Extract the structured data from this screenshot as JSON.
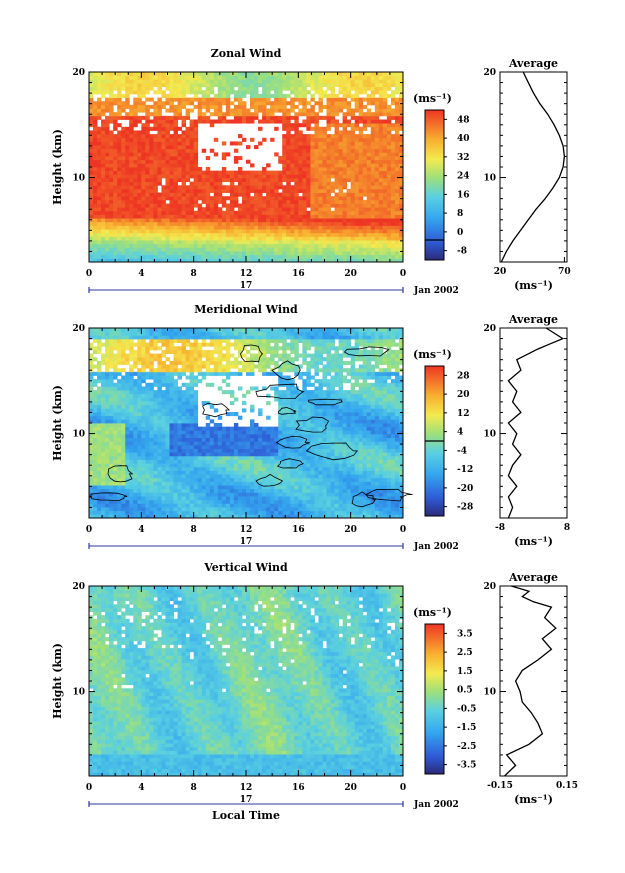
{
  "figure": {
    "time_axis_caption": "Local Time",
    "date_text": "Jan 2002",
    "day_label": "17"
  },
  "chart_data": [
    {
      "type": "heatmap",
      "title": "Zonal Wind",
      "ylabel": "Height (km)",
      "xticks": [
        "0",
        "4",
        "8",
        "12",
        "16",
        "20",
        "0"
      ],
      "yticks": [
        "10",
        "20"
      ],
      "ylim": [
        2,
        20
      ],
      "colorbar": {
        "unit": "(ms⁻¹)",
        "labels": [
          "48",
          "40",
          "32",
          "24",
          "16",
          "8",
          "0",
          "-8"
        ],
        "range": [
          -8,
          52
        ],
        "line_at": 0
      },
      "contours": false,
      "profile": {
        "title": "Average",
        "xlabel": "(ms⁻¹)",
        "xticks": [
          "20",
          "70"
        ],
        "xlim": [
          20,
          72
        ],
        "yticks": [
          "10",
          "20"
        ],
        "x": [
          21,
          25,
          30,
          36,
          42,
          48,
          55,
          61,
          66,
          69,
          70,
          69,
          66,
          62,
          57,
          51,
          46,
          42,
          38
        ],
        "y": [
          2,
          3,
          4,
          5,
          6,
          7,
          8,
          9,
          10,
          11,
          12,
          13,
          14,
          15,
          16,
          17,
          18,
          19,
          20
        ]
      }
    },
    {
      "type": "heatmap",
      "title": "Meridional Wind",
      "ylabel": "Height (km)",
      "xticks": [
        "0",
        "4",
        "8",
        "12",
        "16",
        "20",
        "0"
      ],
      "yticks": [
        "10",
        "20"
      ],
      "ylim": [
        2,
        20
      ],
      "colorbar": {
        "unit": "(ms⁻¹)",
        "labels": [
          "28",
          "20",
          "12",
          "4",
          "-4",
          "-12",
          "-20",
          "-28"
        ],
        "range": [
          -32,
          32
        ],
        "line_at": 0
      },
      "contours": true,
      "profile": {
        "title": "Average",
        "xlabel": "(ms⁻¹)",
        "xticks": [
          "-8",
          "8"
        ],
        "xlim": [
          -8,
          8
        ],
        "yticks": [
          "10",
          "20"
        ],
        "x": [
          -6,
          -5,
          -6,
          -4,
          -6,
          -5,
          -3,
          -5,
          -4,
          -6,
          -3,
          -5,
          -4,
          -6,
          -3,
          -4,
          1,
          4,
          7,
          3
        ],
        "y": [
          2,
          3,
          4,
          5,
          6,
          7,
          8,
          9,
          10,
          11,
          12,
          13,
          14,
          15,
          16,
          17,
          18,
          18.5,
          19,
          20
        ]
      }
    },
    {
      "type": "heatmap",
      "title": "Vertical Wind",
      "ylabel": "Height (km)",
      "xticks": [
        "0",
        "4",
        "8",
        "12",
        "16",
        "20",
        "0"
      ],
      "yticks": [
        "10",
        "20"
      ],
      "ylim": [
        2,
        20
      ],
      "colorbar": {
        "unit": "(ms⁻¹)",
        "labels": [
          "3.5",
          "2.5",
          "1.5",
          "0.5",
          "-0.5",
          "-1.5",
          "-2.5",
          "-3.5"
        ],
        "range": [
          -4,
          4
        ],
        "line_at": null
      },
      "contours": false,
      "profile": {
        "title": "Average",
        "xlabel": "(ms⁻¹)",
        "xticks": [
          "-0.15",
          "0.15"
        ],
        "xlim": [
          -0.15,
          0.15
        ],
        "yticks": [
          "10",
          "20"
        ],
        "x": [
          -0.13,
          -0.08,
          -0.12,
          -0.02,
          0.04,
          0.02,
          -0.01,
          -0.05,
          -0.06,
          -0.08,
          -0.05,
          0.02,
          0.08,
          0.04,
          0.1,
          0.05,
          0.08,
          0.0,
          -0.05,
          -0.02,
          -0.1
        ],
        "y": [
          2,
          3,
          4,
          5,
          6,
          7,
          8,
          9,
          10,
          11,
          12,
          13,
          14,
          15,
          16,
          17,
          18,
          18.5,
          19,
          19.5,
          20
        ]
      }
    }
  ]
}
